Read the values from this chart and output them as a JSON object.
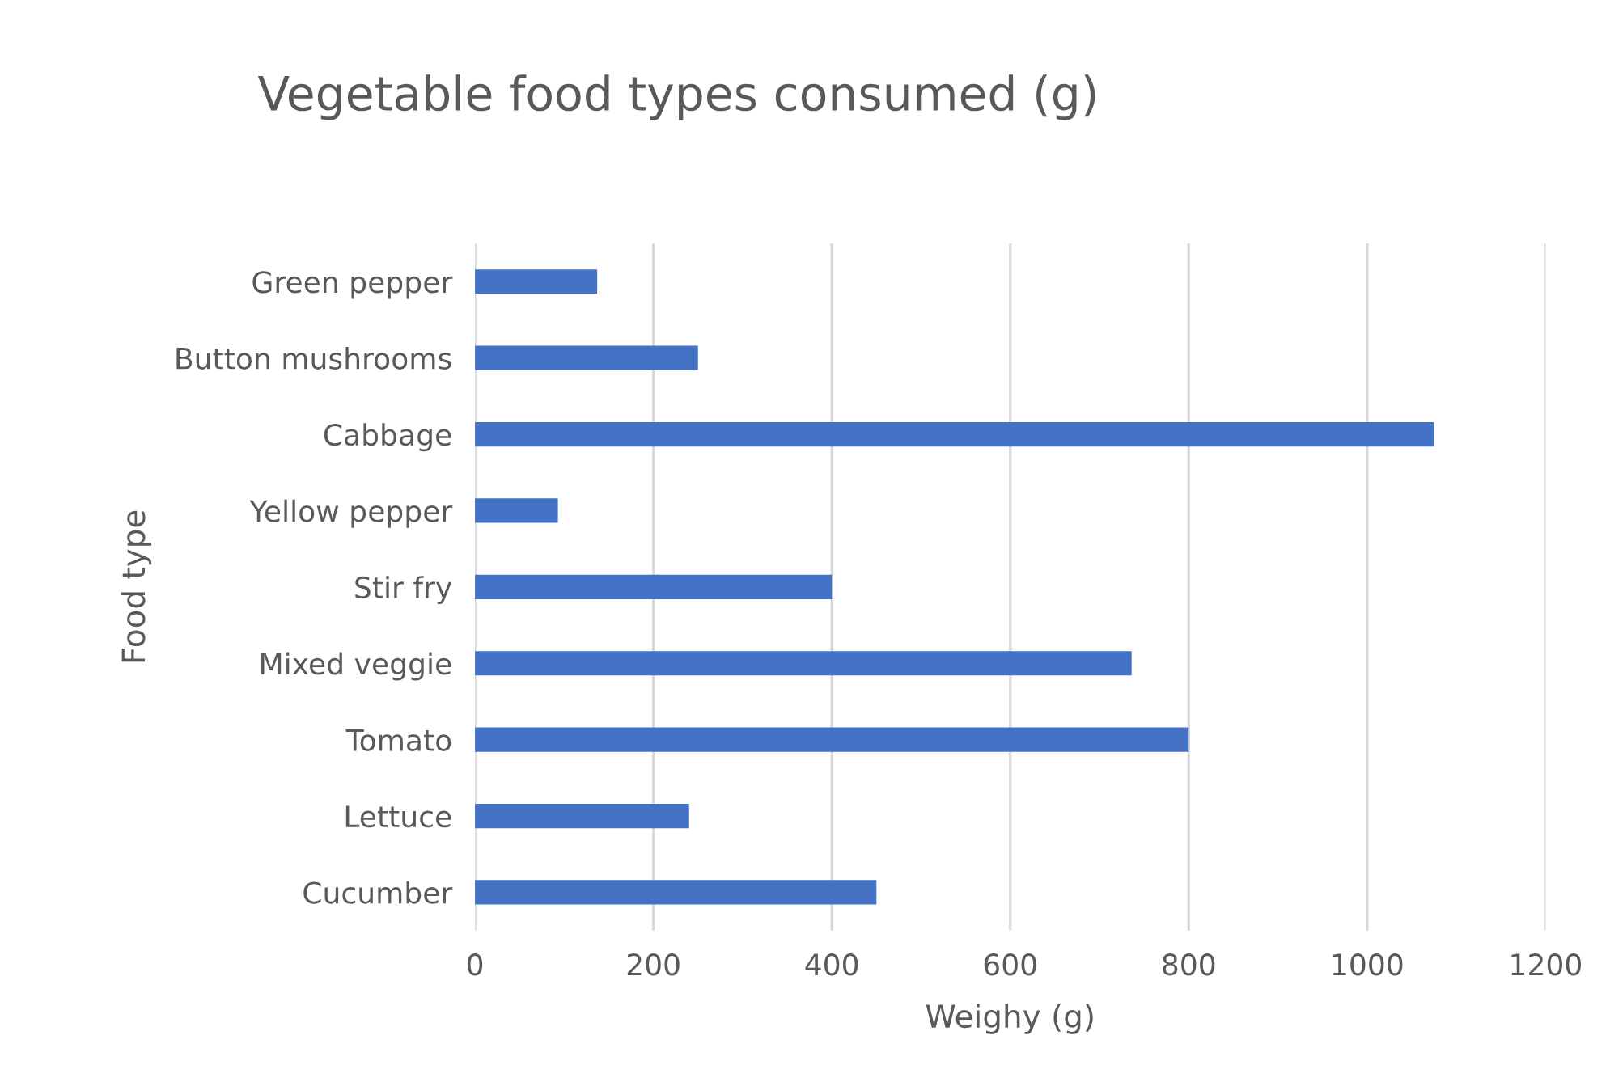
{
  "chart_data": {
    "type": "bar",
    "orientation": "horizontal",
    "title": "Vegetable food types consumed (g)",
    "xlabel": "Weighy (g)",
    "ylabel": "Food type",
    "categories": [
      "Green pepper",
      "Button mushrooms",
      "Cabbage",
      "Yellow pepper",
      "Stir fry",
      "Mixed veggie",
      "Tomato",
      "Lettuce",
      "Cucumber"
    ],
    "values": [
      137,
      250,
      1075,
      93,
      400,
      736,
      800,
      240,
      450
    ],
    "color": "#4472c4",
    "xlim": [
      0,
      1200
    ],
    "xticks": [
      0,
      200,
      400,
      600,
      800,
      1000,
      1200
    ],
    "grid": "x"
  }
}
